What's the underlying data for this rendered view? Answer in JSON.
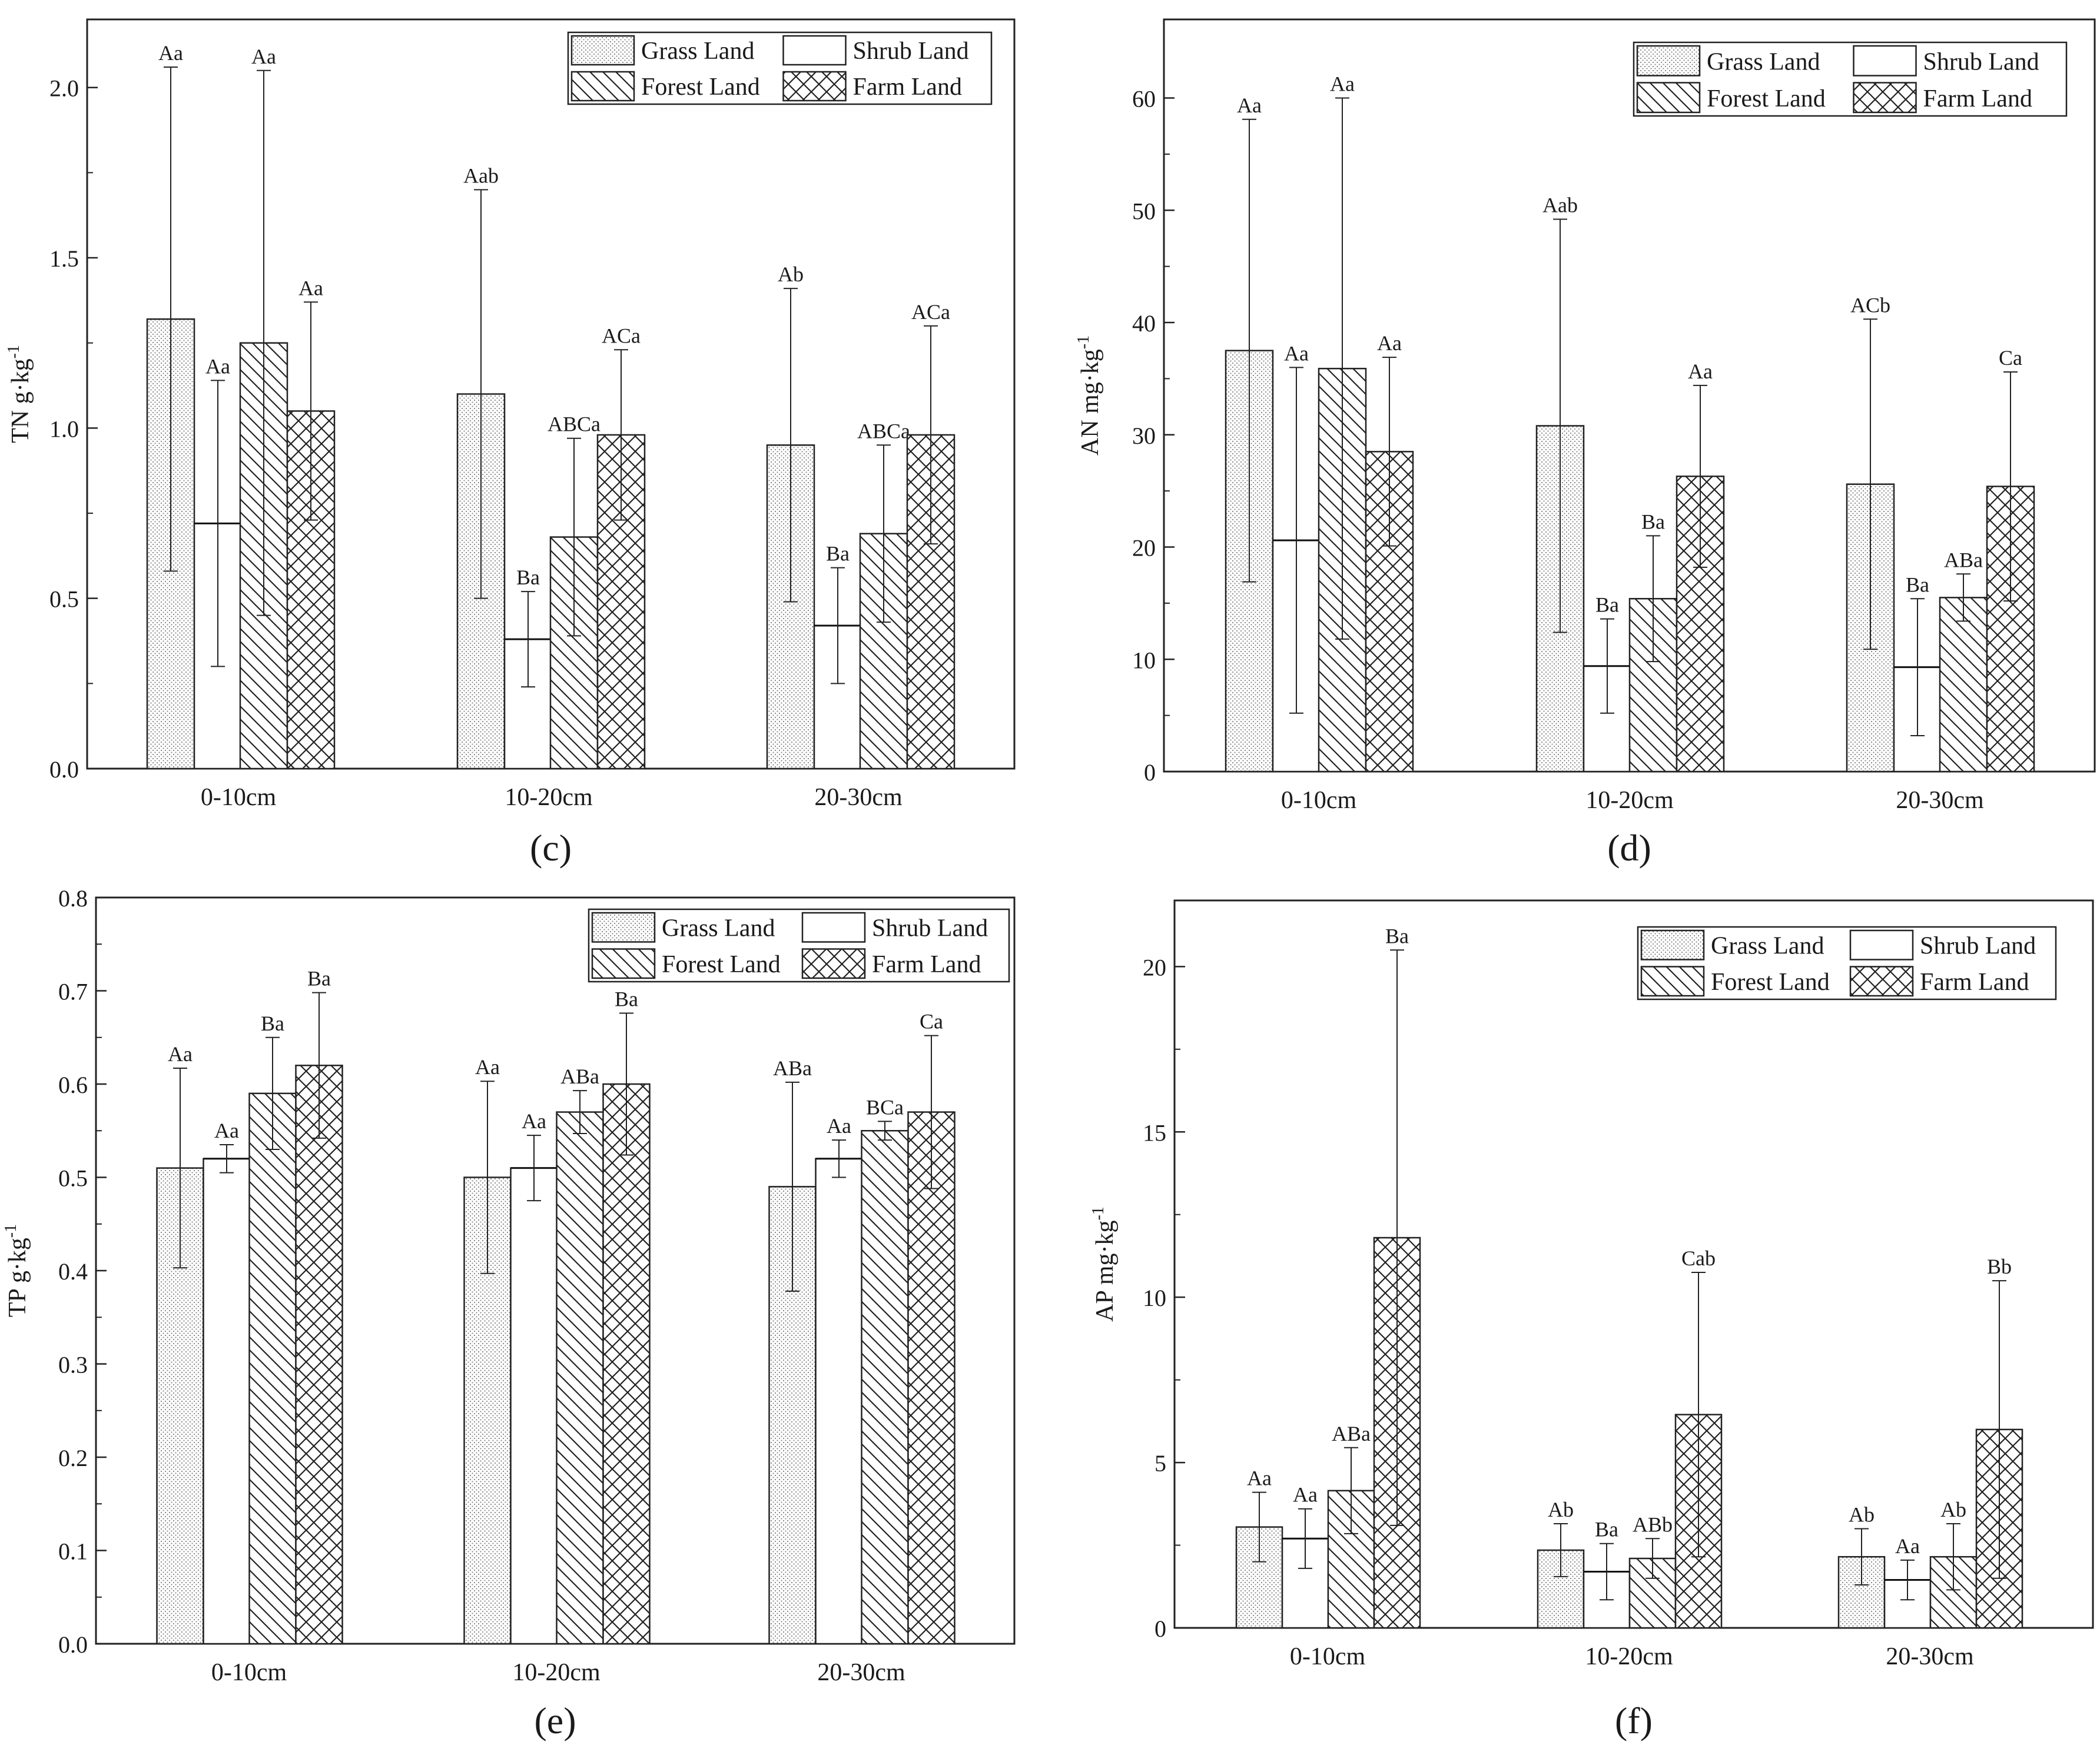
{
  "legend_labels": [
    "Grass Land",
    "Shrub Land",
    "Forest Land",
    "Farm Land"
  ],
  "chart_data": [
    {
      "type": "bar",
      "panel_label": "(c)",
      "ylabel": "TN g·kg",
      "ylabel_exp": "-1",
      "ylim": [
        0,
        2.2
      ],
      "yticks": [
        0.0,
        0.5,
        1.0,
        1.5,
        2.0
      ],
      "ytick_labels": [
        "0.0",
        "0.5",
        "1.0",
        "1.5",
        "2.0"
      ],
      "categories": [
        "0-10cm",
        "10-20cm",
        "20-30cm"
      ],
      "series": [
        {
          "name": "Grass Land",
          "values": [
            1.32,
            1.1,
            0.95
          ],
          "err": [
            0.74,
            0.6,
            0.46
          ],
          "labels": [
            "Aa",
            "Aab",
            "Ab"
          ]
        },
        {
          "name": "Shrub Land",
          "values": [
            0.72,
            0.38,
            0.42
          ],
          "err": [
            0.42,
            0.14,
            0.17
          ],
          "labels": [
            "Aa",
            "Ba",
            "Ba"
          ]
        },
        {
          "name": "Forest Land",
          "values": [
            1.25,
            0.68,
            0.69
          ],
          "err": [
            0.8,
            0.29,
            0.26
          ],
          "labels": [
            "Aa",
            "ABCa",
            "ABCa"
          ]
        },
        {
          "name": "Farm Land",
          "values": [
            1.05,
            0.98,
            0.98
          ],
          "err": [
            0.32,
            0.25,
            0.32
          ],
          "labels": [
            "Aa",
            "ACa",
            "ACa"
          ]
        }
      ]
    },
    {
      "type": "bar",
      "panel_label": "(d)",
      "ylabel": "AN mg·kg",
      "ylabel_exp": "-1",
      "ylim": [
        0,
        67
      ],
      "yticks": [
        0,
        10,
        20,
        30,
        40,
        50,
        60
      ],
      "ytick_labels": [
        "0",
        "10",
        "20",
        "30",
        "40",
        "50",
        "60"
      ],
      "categories": [
        "0-10cm",
        "10-20cm",
        "20-30cm"
      ],
      "series": [
        {
          "name": "Grass Land",
          "values": [
            37.5,
            30.8,
            25.6
          ],
          "err": [
            20.6,
            18.4,
            14.7
          ],
          "labels": [
            "Aa",
            "Aab",
            "ACb"
          ]
        },
        {
          "name": "Shrub Land",
          "values": [
            20.6,
            9.4,
            9.3
          ],
          "err": [
            15.4,
            4.2,
            6.1
          ],
          "labels": [
            "Aa",
            "Ba",
            "Ba"
          ]
        },
        {
          "name": "Forest Land",
          "values": [
            35.9,
            15.4,
            15.5
          ],
          "err": [
            24.1,
            5.6,
            2.1
          ],
          "labels": [
            "Aa",
            "Ba",
            "ABa"
          ]
        },
        {
          "name": "Farm Land",
          "values": [
            28.5,
            26.3,
            25.4
          ],
          "err": [
            8.4,
            8.1,
            10.2
          ],
          "labels": [
            "Aa",
            "Aa",
            "Ca"
          ]
        }
      ]
    },
    {
      "type": "bar",
      "panel_label": "(e)",
      "ylabel": "TP g·kg",
      "ylabel_exp": "-1",
      "ylim": [
        0,
        0.8
      ],
      "yticks": [
        0.0,
        0.1,
        0.2,
        0.3,
        0.4,
        0.5,
        0.6,
        0.7,
        0.8
      ],
      "ytick_labels": [
        "0.0",
        "0.1",
        "0.2",
        "0.3",
        "0.4",
        "0.5",
        "0.6",
        "0.7",
        "0.8"
      ],
      "categories": [
        "0-10cm",
        "10-20cm",
        "20-30cm"
      ],
      "series": [
        {
          "name": "Grass Land",
          "values": [
            0.51,
            0.5,
            0.49
          ],
          "err": [
            0.107,
            0.103,
            0.112
          ],
          "labels": [
            "Aa",
            "Aa",
            "ABa"
          ]
        },
        {
          "name": "Shrub Land",
          "values": [
            0.52,
            0.51,
            0.52
          ],
          "err": [
            0.015,
            0.035,
            0.02
          ],
          "labels": [
            "Aa",
            "Aa",
            "Aa"
          ]
        },
        {
          "name": "Forest Land",
          "values": [
            0.59,
            0.57,
            0.55
          ],
          "err": [
            0.06,
            0.023,
            0.01
          ],
          "labels": [
            "Ba",
            "ABa",
            "BCa"
          ]
        },
        {
          "name": "Farm Land",
          "values": [
            0.62,
            0.6,
            0.57
          ],
          "err": [
            0.078,
            0.076,
            0.082
          ],
          "labels": [
            "Ba",
            "Ba",
            "Ca"
          ]
        }
      ]
    },
    {
      "type": "bar",
      "panel_label": "(f)",
      "ylabel": "AP mg·kg",
      "ylabel_exp": "-1",
      "ylim": [
        0,
        22
      ],
      "yticks": [
        0,
        5,
        10,
        15,
        20
      ],
      "ytick_labels": [
        "0",
        "5",
        "10",
        "15",
        "20"
      ],
      "categories": [
        "0-10cm",
        "10-20cm",
        "20-30cm"
      ],
      "series": [
        {
          "name": "Grass Land",
          "values": [
            3.05,
            2.35,
            2.15
          ],
          "err": [
            1.05,
            0.8,
            0.85
          ],
          "labels": [
            "Aa",
            "Ab",
            "Ab"
          ]
        },
        {
          "name": "Shrub Land",
          "values": [
            2.7,
            1.7,
            1.45
          ],
          "err": [
            0.9,
            0.85,
            0.6
          ],
          "labels": [
            "Aa",
            "Ba",
            "Aa"
          ]
        },
        {
          "name": "Forest Land",
          "values": [
            4.15,
            2.1,
            2.15
          ],
          "err": [
            1.3,
            0.6,
            1.0
          ],
          "labels": [
            "ABa",
            "ABb",
            "Ab"
          ]
        },
        {
          "name": "Farm Land",
          "values": [
            11.8,
            6.45,
            6.0
          ],
          "err": [
            8.7,
            4.3,
            4.5
          ],
          "labels": [
            "Ba",
            "Cab",
            "Bb"
          ]
        }
      ]
    }
  ]
}
